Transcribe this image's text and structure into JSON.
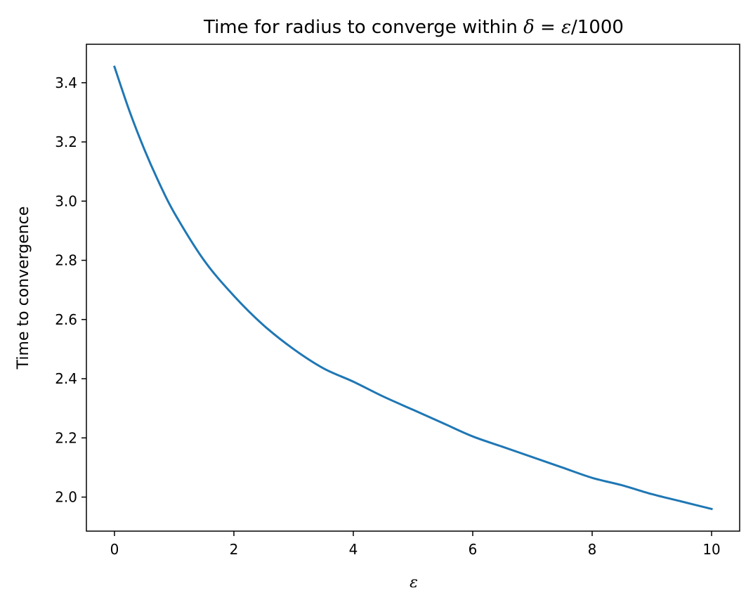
{
  "chart_data": {
    "type": "line",
    "title": "Time for radius to converge within δ = ε/1000",
    "title_parts": {
      "text": "Time for radius to converge within ",
      "delta": "δ",
      "equals": " = ",
      "epsilon": "ε",
      "suffix": "/1000"
    },
    "xlabel": "ε",
    "ylabel": "Time to convergence",
    "xlim": [
      -0.47,
      10.47
    ],
    "ylim": [
      1.885,
      3.53
    ],
    "xticks": [
      0,
      2,
      4,
      6,
      8,
      10
    ],
    "xtick_labels": [
      "0",
      "2",
      "4",
      "6",
      "8",
      "10"
    ],
    "yticks": [
      2.0,
      2.2,
      2.4,
      2.6,
      2.8,
      3.0,
      3.2,
      3.4
    ],
    "ytick_labels": [
      "2.0",
      "2.2",
      "2.4",
      "2.6",
      "2.8",
      "3.0",
      "3.2",
      "3.4"
    ],
    "grid": false,
    "series": [
      {
        "color": "#1f77b4",
        "x": [
          0.0,
          0.25,
          0.5,
          0.75,
          1.0,
          1.5,
          2.0,
          2.5,
          3.0,
          3.5,
          4.0,
          4.5,
          5.0,
          5.5,
          6.0,
          6.5,
          7.0,
          7.5,
          8.0,
          8.5,
          9.0,
          9.5,
          10.0
        ],
        "y": [
          3.454,
          3.305,
          3.175,
          3.061,
          2.961,
          2.8,
          2.68,
          2.58,
          2.5,
          2.435,
          2.39,
          2.34,
          2.295,
          2.25,
          2.205,
          2.17,
          2.135,
          2.1,
          2.065,
          2.04,
          2.01,
          1.985,
          1.96
        ]
      }
    ]
  }
}
